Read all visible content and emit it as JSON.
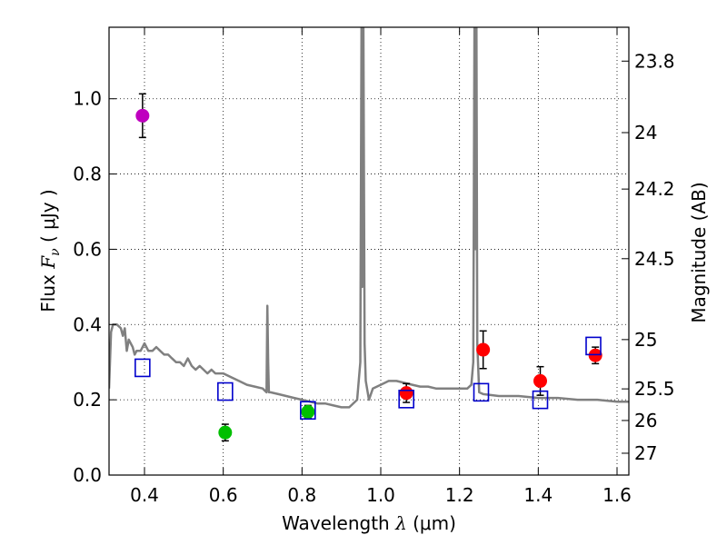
{
  "chart_data": {
    "type": "scatter",
    "title": "",
    "xlabel": "Wavelength  λ (μm)",
    "xlabel_parts": {
      "prefix": "Wavelength  ",
      "symbol": "λ",
      "unit": "(μm)"
    },
    "ylabel": "Flux  Fν  ( μJy )",
    "ylabel_parts": {
      "prefix": "Flux  ",
      "symbol": "F",
      "subscript": "ν",
      "unit": "( μJy )"
    },
    "y2label": "Magnitude (AB)",
    "xlim": [
      0.31,
      1.63
    ],
    "ylim": [
      0.0,
      1.19
    ],
    "grid": true,
    "x_ticks": [
      "0.4",
      "0.6",
      "0.8",
      "1.0",
      "1.2",
      "1.4",
      "1.6"
    ],
    "y_ticks": [
      "0.0",
      "0.2",
      "0.4",
      "0.6",
      "0.8",
      "1.0"
    ],
    "y2_ticks": [
      {
        "label": "23.8",
        "flux": 1.1
      },
      {
        "label": "24",
        "flux": 0.91
      },
      {
        "label": "24.2",
        "flux": 0.76
      },
      {
        "label": "24.5",
        "flux": 0.575
      },
      {
        "label": "25",
        "flux": 0.36
      },
      {
        "label": "25.5",
        "flux": 0.229
      },
      {
        "label": "26",
        "flux": 0.145
      },
      {
        "label": "27",
        "flux": 0.058
      }
    ],
    "colors": {
      "model": "#808080",
      "purple": "#bf00bf",
      "green": "#00bf00",
      "red": "#ff0000",
      "square": "#0000cc",
      "errorbar": "#000000"
    },
    "series": [
      {
        "name": "model template",
        "kind": "line",
        "color": "model",
        "x": [
          0.31,
          0.315,
          0.32,
          0.33,
          0.34,
          0.345,
          0.35,
          0.355,
          0.36,
          0.37,
          0.375,
          0.38,
          0.39,
          0.4,
          0.41,
          0.42,
          0.43,
          0.44,
          0.45,
          0.46,
          0.47,
          0.48,
          0.49,
          0.5,
          0.51,
          0.52,
          0.53,
          0.54,
          0.55,
          0.56,
          0.57,
          0.58,
          0.59,
          0.6,
          0.62,
          0.64,
          0.66,
          0.68,
          0.7,
          0.71,
          0.712,
          0.714,
          0.716,
          0.72,
          0.74,
          0.76,
          0.78,
          0.8,
          0.82,
          0.84,
          0.86,
          0.88,
          0.9,
          0.92,
          0.94,
          0.948,
          0.951,
          0.953,
          0.956,
          0.959,
          0.962,
          0.97,
          0.98,
          1.0,
          1.02,
          1.04,
          1.06,
          1.08,
          1.1,
          1.12,
          1.14,
          1.16,
          1.18,
          1.2,
          1.22,
          1.23,
          1.235,
          1.238,
          1.24,
          1.243,
          1.245,
          1.25,
          1.26,
          1.3,
          1.35,
          1.4,
          1.45,
          1.5,
          1.55,
          1.6,
          1.63
        ],
        "y": [
          0.23,
          0.38,
          0.4,
          0.4,
          0.39,
          0.37,
          0.39,
          0.33,
          0.36,
          0.34,
          0.32,
          0.33,
          0.33,
          0.35,
          0.33,
          0.33,
          0.34,
          0.33,
          0.32,
          0.32,
          0.31,
          0.3,
          0.3,
          0.29,
          0.31,
          0.29,
          0.28,
          0.29,
          0.28,
          0.27,
          0.28,
          0.27,
          0.27,
          0.27,
          0.26,
          0.25,
          0.24,
          0.235,
          0.23,
          0.22,
          0.45,
          0.3,
          0.22,
          0.22,
          0.215,
          0.21,
          0.205,
          0.2,
          0.195,
          0.19,
          0.19,
          0.185,
          0.18,
          0.18,
          0.2,
          0.3,
          1.19,
          0.5,
          1.19,
          0.35,
          0.25,
          0.2,
          0.23,
          0.24,
          0.25,
          0.25,
          0.245,
          0.24,
          0.235,
          0.235,
          0.23,
          0.23,
          0.23,
          0.23,
          0.23,
          0.24,
          0.3,
          1.19,
          0.6,
          1.19,
          0.35,
          0.22,
          0.215,
          0.21,
          0.21,
          0.205,
          0.205,
          0.2,
          0.2,
          0.195,
          0.195
        ]
      },
      {
        "name": "purple point",
        "kind": "circle",
        "color": "purple",
        "x": [
          0.395
        ],
        "y": [
          0.955
        ],
        "err": [
          0.058
        ]
      },
      {
        "name": "green points",
        "kind": "circle",
        "color": "green",
        "x": [
          0.605,
          0.815
        ],
        "y": [
          0.113,
          0.168
        ],
        "err": [
          0.022,
          0.017
        ]
      },
      {
        "name": "red points",
        "kind": "circle",
        "color": "red",
        "x": [
          1.065,
          1.26,
          1.405,
          1.545
        ],
        "y": [
          0.218,
          0.333,
          0.25,
          0.318
        ],
        "err": [
          0.025,
          0.05,
          0.038,
          0.022
        ]
      },
      {
        "name": "model photometry",
        "kind": "square",
        "color": "square",
        "x": [
          0.395,
          0.605,
          0.815,
          1.065,
          1.255,
          1.405,
          1.54
        ],
        "y": [
          0.285,
          0.222,
          0.172,
          0.202,
          0.22,
          0.2,
          0.343
        ]
      }
    ]
  }
}
